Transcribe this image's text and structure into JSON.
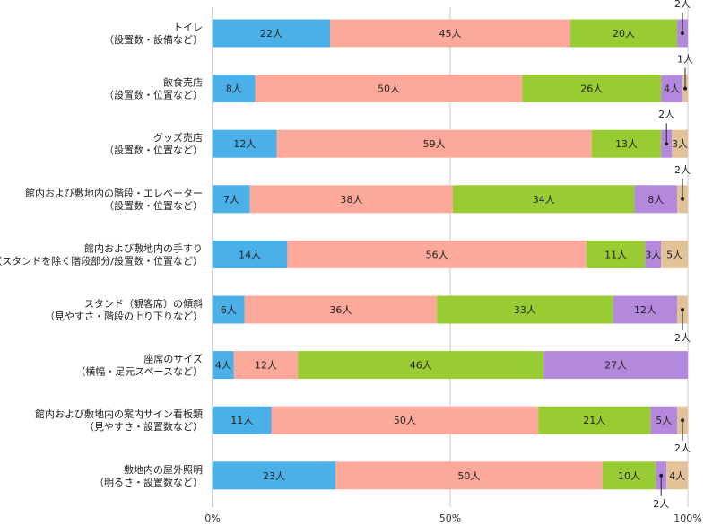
{
  "chart_data": {
    "type": "bar",
    "orientation": "horizontal",
    "stacked": true,
    "normalized": true,
    "unit_suffix": "人",
    "categories": [
      [
        "トイレ",
        "（設置数・設備など）"
      ],
      [
        "飲食売店",
        "（設置数・位置など）"
      ],
      [
        "グッズ売店",
        "（設置数・位置など）"
      ],
      [
        "館内および敷地内の階段・エレベーター",
        "（設置数・位置など）"
      ],
      [
        "館内および敷地内の手すり",
        "（スタンドを除く階段部分/設置数・位置など）"
      ],
      [
        "スタンド（観客席）の傾斜",
        "（見やすさ・階段の上り下りなど）"
      ],
      [
        "座席のサイズ",
        "（横幅・足元スペースなど）"
      ],
      [
        "館内および敷地内の案内サイン看板類",
        "（見やすさ・設置数など）"
      ],
      [
        "敷地内の屋外照明",
        "（明るさ・設置数など）"
      ]
    ],
    "series": [
      {
        "color": "#4bafe8",
        "values": [
          22,
          8,
          12,
          7,
          14,
          6,
          4,
          11,
          23
        ]
      },
      {
        "color": "#fca99b",
        "values": [
          45,
          50,
          59,
          38,
          56,
          36,
          12,
          50,
          50
        ]
      },
      {
        "color": "#99cc33",
        "values": [
          20,
          26,
          13,
          34,
          11,
          33,
          46,
          21,
          10
        ]
      },
      {
        "color": "#b388dd",
        "values": [
          2,
          4,
          2,
          8,
          3,
          12,
          27,
          5,
          2
        ]
      },
      {
        "color": "#e2c296",
        "values": [
          0,
          1,
          3,
          2,
          5,
          2,
          0,
          2,
          4
        ]
      }
    ],
    "callouts": [
      {
        "row": 0,
        "series": 3,
        "label": "2人",
        "direction": "up"
      },
      {
        "row": 1,
        "series": 4,
        "label": "1人",
        "direction": "up"
      },
      {
        "row": 2,
        "series": 3,
        "label": "2人",
        "direction": "up"
      },
      {
        "row": 3,
        "series": 4,
        "label": "2人",
        "direction": "up"
      },
      {
        "row": 5,
        "series": 4,
        "label": "2人",
        "direction": "down"
      },
      {
        "row": 7,
        "series": 4,
        "label": "2人",
        "direction": "down"
      },
      {
        "row": 8,
        "series": 3,
        "label": "2人",
        "direction": "down"
      }
    ],
    "x_ticks": [
      "0%",
      "50%",
      "100%"
    ],
    "xlim": [
      0,
      100
    ],
    "grid": true
  }
}
